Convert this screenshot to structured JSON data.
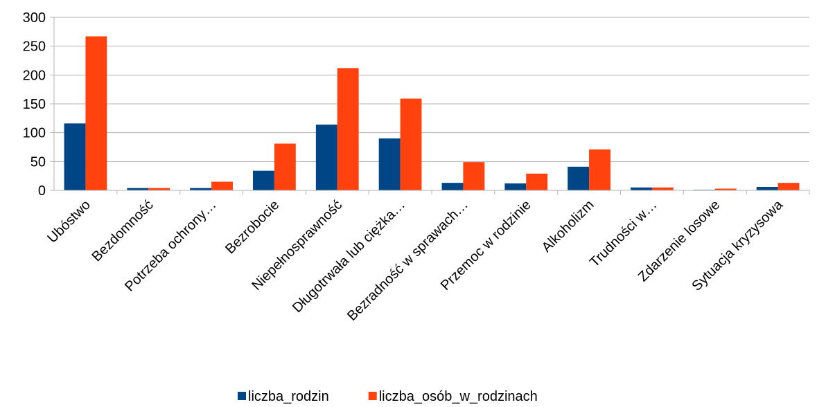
{
  "chart_data": {
    "type": "bar",
    "categories": [
      "Ubóstwo",
      "Bezdomność",
      "Potrzeba ochrony…",
      "Bezrobocie",
      "Niepełnosprawność",
      "Długotrwała lub ciężka…",
      "Bezradność w sprawach…",
      "Przemoc w rodzinie",
      "Alkoholizm",
      "Trudności w…",
      "Zdarzenie losowe",
      "Sytuacja kryzysowa"
    ],
    "series": [
      {
        "name": "liczba_rodzin",
        "color": "#004586",
        "values": [
          116,
          4,
          4,
          34,
          114,
          90,
          13,
          12,
          41,
          5,
          1,
          6
        ]
      },
      {
        "name": "liczba_osób_w_rodzinach",
        "color": "#ff420e",
        "values": [
          267,
          4,
          15,
          81,
          212,
          159,
          49,
          29,
          71,
          5,
          3,
          13
        ]
      }
    ],
    "ylim": [
      0,
      300
    ],
    "yticks": [
      0,
      50,
      100,
      150,
      200,
      250,
      300
    ],
    "grid": true,
    "legend": "bottom"
  }
}
